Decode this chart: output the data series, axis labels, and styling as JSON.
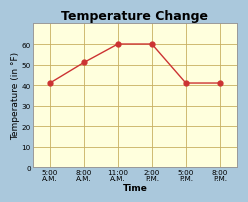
{
  "title": "Temperature Change",
  "x_labels": [
    "5:00\nA.M.",
    "8:00\nA.M.",
    "11:00\nA.M.",
    "2:00\nP.M.",
    "5:00\nP.M.",
    "8:00\nP.M."
  ],
  "y_values": [
    41,
    51,
    60,
    60,
    41,
    41
  ],
  "x_values": [
    0,
    1,
    2,
    3,
    4,
    5
  ],
  "ylim": [
    0,
    70
  ],
  "yticks": [
    0,
    10,
    20,
    30,
    40,
    50,
    60
  ],
  "xlabel": "Time",
  "ylabel": "Temperature (in °F)",
  "line_color": "#cc3333",
  "marker_color": "#cc3333",
  "plot_bg_color": "#ffffdd",
  "outer_bg_color": "#aac8dc",
  "grid_color": "#c8b060",
  "title_fontsize": 9,
  "axis_label_fontsize": 6.5,
  "tick_fontsize": 5.2
}
